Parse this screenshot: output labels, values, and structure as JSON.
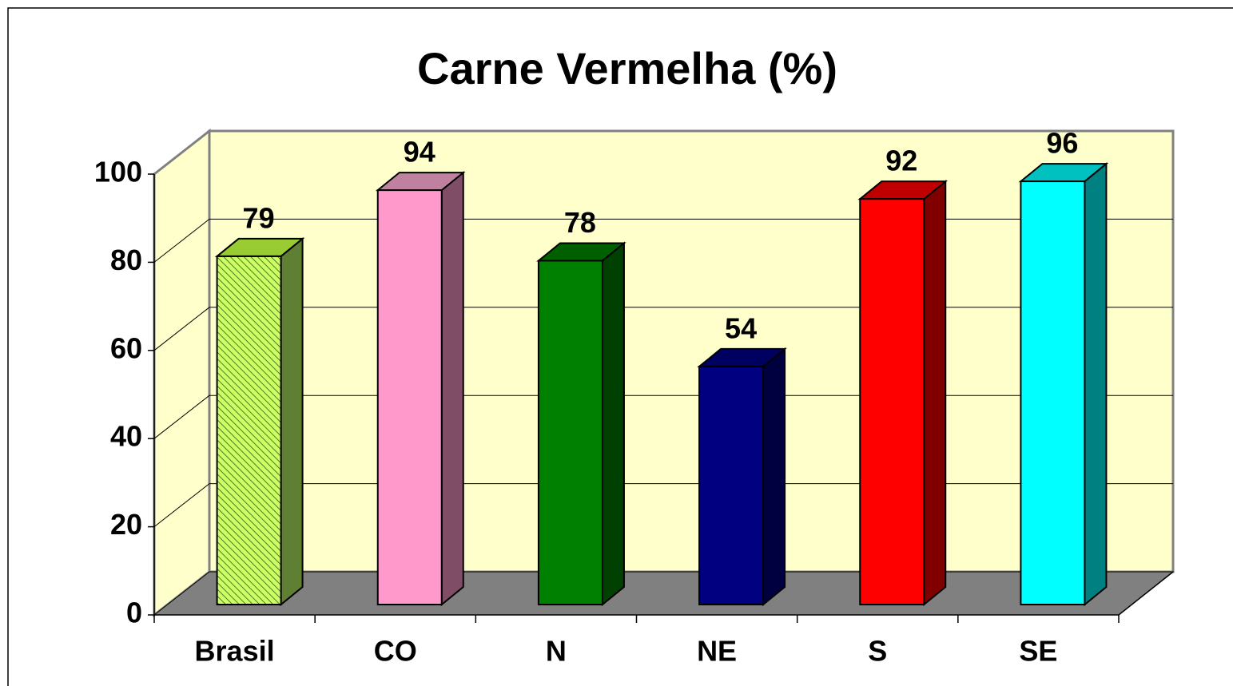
{
  "chart_data": {
    "type": "bar3d",
    "title": "Carne Vermelha (%)",
    "categories": [
      "Brasil",
      "CO",
      "N",
      "NE",
      "S",
      "SE"
    ],
    "values": [
      79,
      94,
      78,
      54,
      92,
      96
    ],
    "colors": [
      "#ccff66",
      "#ff99cc",
      "#008000",
      "#000080",
      "#ff0000",
      "#00ffff"
    ],
    "side_colors": [
      "#5f7f33",
      "#804d66",
      "#004000",
      "#000040",
      "#800000",
      "#008080"
    ],
    "top_colors": [
      "#99cc33",
      "#c080a0",
      "#006000",
      "#000060",
      "#c00000",
      "#00c0c0"
    ],
    "hatched": [
      true,
      false,
      false,
      false,
      false,
      false
    ],
    "ylim": [
      0,
      100
    ],
    "yticks": [
      0,
      20,
      40,
      60,
      80,
      100
    ],
    "grid": true
  }
}
